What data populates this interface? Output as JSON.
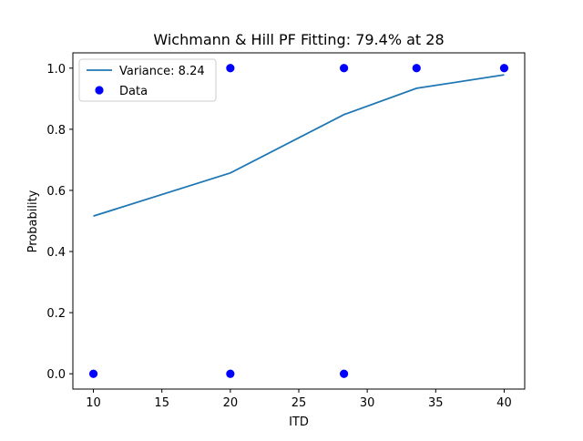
{
  "chart_data": {
    "type": "line",
    "title": "Wichmann & Hill PF Fitting: 79.4% at 28",
    "xlabel": "ITD",
    "ylabel": "Probability",
    "xlim": [
      8.5,
      41.5
    ],
    "ylim": [
      -0.05,
      1.05
    ],
    "xticks": [
      10,
      15,
      20,
      25,
      30,
      35,
      40
    ],
    "yticks": [
      0.0,
      0.2,
      0.4,
      0.6,
      0.8,
      1.0
    ],
    "xtick_labels": [
      "10",
      "15",
      "20",
      "25",
      "30",
      "35",
      "40"
    ],
    "ytick_labels": [
      "0.0",
      "0.2",
      "0.4",
      "0.6",
      "0.8",
      "1.0"
    ],
    "grid": false,
    "legend_position": "top-left",
    "series": [
      {
        "name": "Variance: 8.24",
        "kind": "line",
        "color": "#1f77b4",
        "x": [
          10,
          20,
          28.3,
          33.6,
          40
        ],
        "y": [
          0.516,
          0.657,
          0.848,
          0.934,
          0.978
        ]
      },
      {
        "name": "Data",
        "kind": "scatter",
        "color": "#0000ff",
        "x": [
          10,
          20,
          20,
          28.3,
          28.3,
          33.6,
          40
        ],
        "y": [
          0,
          1,
          0,
          1,
          0,
          1,
          1
        ]
      }
    ]
  }
}
